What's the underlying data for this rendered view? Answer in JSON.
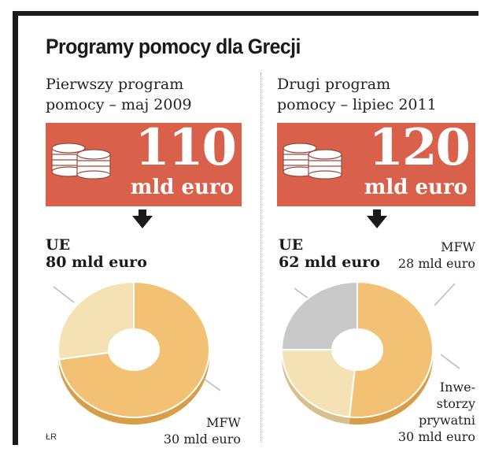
{
  "title": "Programy pomocy dla Grecji",
  "source": "ŁR",
  "colors": {
    "banner": "#d9604a",
    "ue": "#f3c173",
    "mfw": "#f5e2b4",
    "investors": "#c9c9c9",
    "text": "#1a1a1a"
  },
  "icons": {
    "coins": "coins-icon",
    "arrow": "arrow-down-icon"
  },
  "left": {
    "subtitle_line1": "Pierwszy program",
    "subtitle_line2": "pomocy – maj 2009",
    "total": "110",
    "total_unit": "mld euro",
    "ue_name": "UE",
    "ue_value": "80 mld euro",
    "mfw_name": "MFW",
    "mfw_value": "30 mld euro"
  },
  "right": {
    "subtitle_line1": "Drugi program",
    "subtitle_line2": "pomocy – lipiec 2011",
    "total": "120",
    "total_unit": "mld euro",
    "ue_name": "UE",
    "ue_value": "62 mld euro",
    "mfw_name": "MFW",
    "mfw_value": "28 mld euro",
    "inv_line1": "Inwe-",
    "inv_line2": "storzy",
    "inv_line3": "prywatni",
    "inv_value": "30 mld euro"
  },
  "chart_data": [
    {
      "type": "pie",
      "title": "Pierwszy program pomocy – maj 2009",
      "total": 110,
      "unit": "mld euro",
      "categories": [
        "UE",
        "MFW"
      ],
      "values": [
        80,
        30
      ]
    },
    {
      "type": "pie",
      "title": "Drugi program pomocy – lipiec 2011",
      "total": 120,
      "unit": "mld euro",
      "categories": [
        "UE",
        "MFW",
        "Inwestorzy prywatni"
      ],
      "values": [
        62,
        28,
        30
      ]
    }
  ]
}
